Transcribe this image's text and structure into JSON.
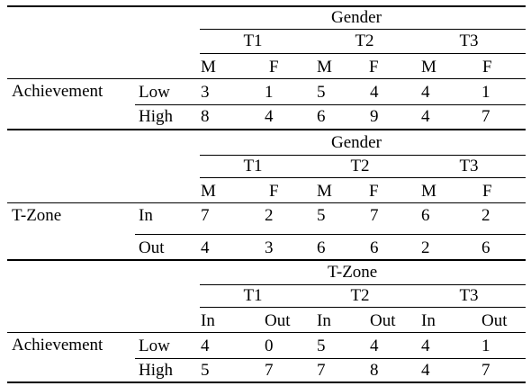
{
  "tables": [
    {
      "group_label": "Gender",
      "time_labels": [
        "T1",
        "T2",
        "T3"
      ],
      "sub_labels": [
        "M",
        "F",
        "M",
        "F",
        "M",
        "F"
      ],
      "row_variable": "Achievement",
      "rows": [
        {
          "label": "Low",
          "values": [
            "3",
            "1",
            "5",
            "4",
            "4",
            "1"
          ]
        },
        {
          "label": "High",
          "values": [
            "8",
            "4",
            "6",
            "9",
            "4",
            "7"
          ]
        }
      ]
    },
    {
      "group_label": "Gender",
      "time_labels": [
        "T1",
        "T2",
        "T3"
      ],
      "sub_labels": [
        "M",
        "F",
        "M",
        "F",
        "M",
        "F"
      ],
      "row_variable": "T-Zone",
      "rows": [
        {
          "label": "In",
          "values": [
            "7",
            "2",
            "5",
            "7",
            "6",
            "2"
          ]
        },
        {
          "label": "Out",
          "values": [
            "4",
            "3",
            "6",
            "6",
            "2",
            "6"
          ]
        }
      ]
    },
    {
      "group_label": "T-Zone",
      "time_labels": [
        "T1",
        "T2",
        "T3"
      ],
      "sub_labels": [
        "In",
        "Out",
        "In",
        "Out",
        "In",
        "Out"
      ],
      "row_variable": "Achievement",
      "rows": [
        {
          "label": "Low",
          "values": [
            "4",
            "0",
            "5",
            "4",
            "4",
            "1"
          ]
        },
        {
          "label": "High",
          "values": [
            "5",
            "7",
            "7",
            "8",
            "4",
            "7"
          ]
        }
      ]
    }
  ]
}
